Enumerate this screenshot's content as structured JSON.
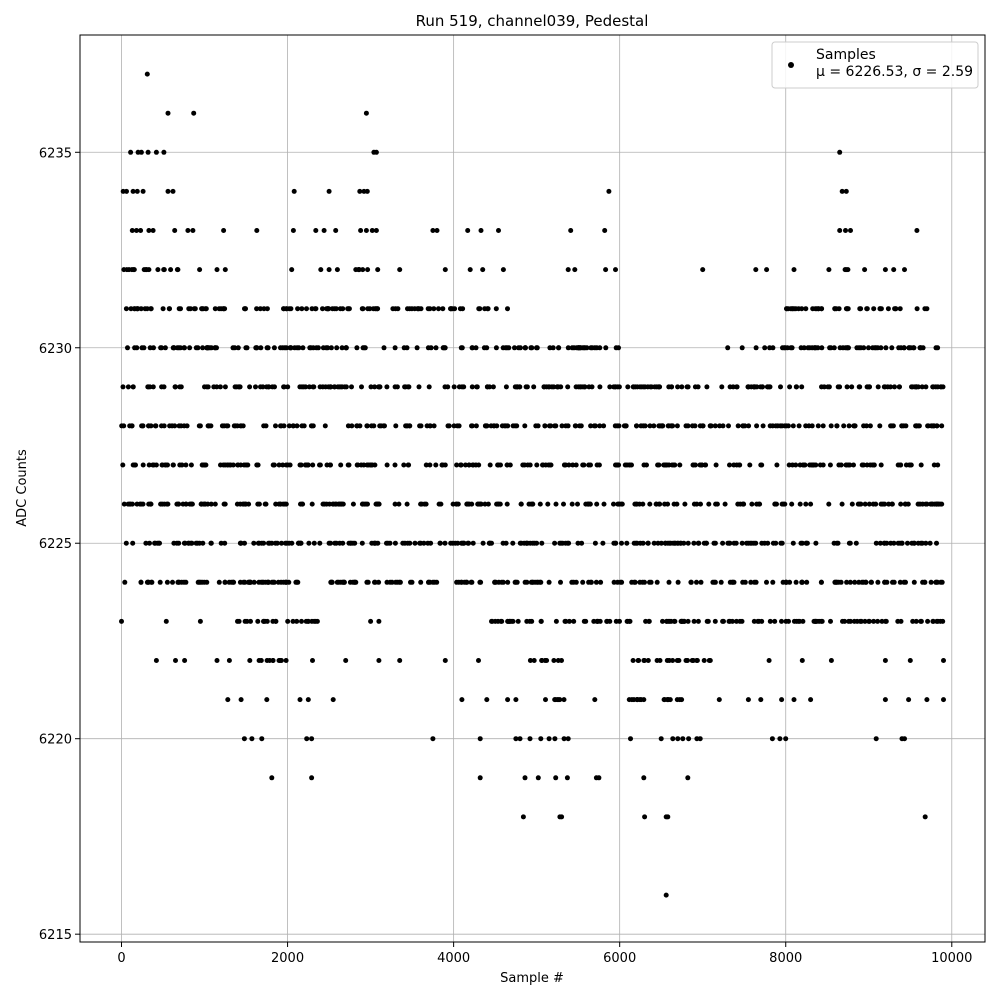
{
  "chart_data": {
    "type": "scatter",
    "title": "Run 519, channel039, Pedestal",
    "xlabel": "Sample #",
    "ylabel": "ADC Counts",
    "xlim": [
      -500,
      10400
    ],
    "ylim": [
      6214.8,
      6238.0
    ],
    "xticks": [
      0,
      2000,
      4000,
      6000,
      8000,
      10000
    ],
    "yticks": [
      6215,
      6220,
      6225,
      6230,
      6235
    ],
    "grid": true,
    "legend_position": "top-right",
    "series": [
      {
        "name": "Samples",
        "legend_line2": "μ = 6226.53, σ = 2.59",
        "color": "#000000",
        "sample_count": 10000,
        "x_range": [
          0,
          9900
        ],
        "y_levels": [
          6216,
          6218,
          6219,
          6220,
          6221,
          6222,
          6223,
          6224,
          6225,
          6226,
          6227,
          6228,
          6229,
          6230,
          6231,
          6232,
          6233,
          6234,
          6235,
          6236,
          6237
        ],
        "dense_bands": [
          {
            "y": 6223,
            "x_ranges": [
              [
                1300,
                2400
              ],
              [
                4300,
                9900
              ]
            ]
          },
          {
            "y": 6224,
            "x_ranges": [
              [
                0,
                9900
              ]
            ]
          },
          {
            "y": 6225,
            "x_ranges": [
              [
                0,
                9900
              ]
            ]
          },
          {
            "y": 6226,
            "x_ranges": [
              [
                0,
                9900
              ]
            ]
          },
          {
            "y": 6227,
            "x_ranges": [
              [
                0,
                9900
              ]
            ]
          },
          {
            "y": 6228,
            "x_ranges": [
              [
                0,
                9900
              ]
            ]
          },
          {
            "y": 6229,
            "x_ranges": [
              [
                0,
                9900
              ]
            ]
          },
          {
            "y": 6230,
            "x_ranges": [
              [
                0,
                6000
              ],
              [
                7300,
                9900
              ]
            ]
          },
          {
            "y": 6231,
            "x_ranges": [
              [
                0,
                4700
              ],
              [
                8000,
                9900
              ]
            ]
          },
          {
            "y": 6232,
            "x_ranges": [
              [
                0,
                700
              ],
              [
                2800,
                3100
              ],
              [
                8650,
                8800
              ]
            ]
          },
          {
            "y": 6222,
            "x_ranges": [
              [
                1500,
                2000
              ],
              [
                4900,
                5300
              ],
              [
                6100,
                7100
              ]
            ]
          },
          {
            "y": 6221,
            "x_ranges": [
              [
                5100,
                5400
              ],
              [
                6100,
                6900
              ]
            ]
          }
        ],
        "outliers": [
          {
            "x": 0,
            "y": 6223
          },
          {
            "x": 540,
            "y": 6223
          },
          {
            "x": 950,
            "y": 6223
          },
          {
            "x": 3000,
            "y": 6223
          },
          {
            "x": 3100,
            "y": 6223
          },
          {
            "x": 420,
            "y": 6222
          },
          {
            "x": 650,
            "y": 6222
          },
          {
            "x": 760,
            "y": 6222
          },
          {
            "x": 1150,
            "y": 6222
          },
          {
            "x": 1300,
            "y": 6222
          },
          {
            "x": 2300,
            "y": 6222
          },
          {
            "x": 2700,
            "y": 6222
          },
          {
            "x": 3100,
            "y": 6222
          },
          {
            "x": 3350,
            "y": 6222
          },
          {
            "x": 3900,
            "y": 6222
          },
          {
            "x": 4300,
            "y": 6222
          },
          {
            "x": 7800,
            "y": 6222
          },
          {
            "x": 8200,
            "y": 6222
          },
          {
            "x": 8550,
            "y": 6222
          },
          {
            "x": 9200,
            "y": 6222
          },
          {
            "x": 9500,
            "y": 6222
          },
          {
            "x": 9900,
            "y": 6222
          },
          {
            "x": 1280,
            "y": 6221
          },
          {
            "x": 1440,
            "y": 6221
          },
          {
            "x": 1750,
            "y": 6221
          },
          {
            "x": 2150,
            "y": 6221
          },
          {
            "x": 2250,
            "y": 6221
          },
          {
            "x": 2550,
            "y": 6221
          },
          {
            "x": 4100,
            "y": 6221
          },
          {
            "x": 4400,
            "y": 6221
          },
          {
            "x": 4650,
            "y": 6221
          },
          {
            "x": 4750,
            "y": 6221
          },
          {
            "x": 5700,
            "y": 6221
          },
          {
            "x": 7200,
            "y": 6221
          },
          {
            "x": 7550,
            "y": 6221
          },
          {
            "x": 7700,
            "y": 6221
          },
          {
            "x": 7950,
            "y": 6221
          },
          {
            "x": 8100,
            "y": 6221
          },
          {
            "x": 8300,
            "y": 6221
          },
          {
            "x": 9200,
            "y": 6221
          },
          {
            "x": 9480,
            "y": 6221
          },
          {
            "x": 9700,
            "y": 6221
          },
          {
            "x": 9900,
            "y": 6221
          },
          {
            "x": 1480,
            "y": 6220
          },
          {
            "x": 1570,
            "y": 6220
          },
          {
            "x": 1690,
            "y": 6220
          },
          {
            "x": 2230,
            "y": 6220
          },
          {
            "x": 2290,
            "y": 6220
          },
          {
            "x": 3750,
            "y": 6220
          },
          {
            "x": 4320,
            "y": 6220
          },
          {
            "x": 4750,
            "y": 6220
          },
          {
            "x": 4800,
            "y": 6220
          },
          {
            "x": 4920,
            "y": 6220
          },
          {
            "x": 5050,
            "y": 6220
          },
          {
            "x": 5150,
            "y": 6220
          },
          {
            "x": 5220,
            "y": 6220
          },
          {
            "x": 5330,
            "y": 6220
          },
          {
            "x": 5380,
            "y": 6220
          },
          {
            "x": 6130,
            "y": 6220
          },
          {
            "x": 6500,
            "y": 6220
          },
          {
            "x": 6640,
            "y": 6220
          },
          {
            "x": 6700,
            "y": 6220
          },
          {
            "x": 6760,
            "y": 6220
          },
          {
            "x": 6830,
            "y": 6220
          },
          {
            "x": 6930,
            "y": 6220
          },
          {
            "x": 6970,
            "y": 6220
          },
          {
            "x": 7840,
            "y": 6220
          },
          {
            "x": 7930,
            "y": 6220
          },
          {
            "x": 8000,
            "y": 6220
          },
          {
            "x": 9090,
            "y": 6220
          },
          {
            "x": 9400,
            "y": 6220
          },
          {
            "x": 9430,
            "y": 6220
          },
          {
            "x": 1810,
            "y": 6219
          },
          {
            "x": 2290,
            "y": 6219
          },
          {
            "x": 4320,
            "y": 6219
          },
          {
            "x": 4860,
            "y": 6219
          },
          {
            "x": 5020,
            "y": 6219
          },
          {
            "x": 5230,
            "y": 6219
          },
          {
            "x": 5370,
            "y": 6219
          },
          {
            "x": 5720,
            "y": 6219
          },
          {
            "x": 5750,
            "y": 6219
          },
          {
            "x": 6290,
            "y": 6219
          },
          {
            "x": 6820,
            "y": 6219
          },
          {
            "x": 4840,
            "y": 6218
          },
          {
            "x": 5280,
            "y": 6218
          },
          {
            "x": 5300,
            "y": 6218
          },
          {
            "x": 6300,
            "y": 6218
          },
          {
            "x": 6560,
            "y": 6218
          },
          {
            "x": 6580,
            "y": 6218
          },
          {
            "x": 9680,
            "y": 6218
          },
          {
            "x": 6560,
            "y": 6216
          },
          {
            "x": 940,
            "y": 6232
          },
          {
            "x": 1150,
            "y": 6232
          },
          {
            "x": 1250,
            "y": 6232
          },
          {
            "x": 2050,
            "y": 6232
          },
          {
            "x": 2400,
            "y": 6232
          },
          {
            "x": 2500,
            "y": 6232
          },
          {
            "x": 2600,
            "y": 6232
          },
          {
            "x": 3350,
            "y": 6232
          },
          {
            "x": 3900,
            "y": 6232
          },
          {
            "x": 4200,
            "y": 6232
          },
          {
            "x": 4350,
            "y": 6232
          },
          {
            "x": 4600,
            "y": 6232
          },
          {
            "x": 5380,
            "y": 6232
          },
          {
            "x": 5460,
            "y": 6232
          },
          {
            "x": 5830,
            "y": 6232
          },
          {
            "x": 5950,
            "y": 6232
          },
          {
            "x": 7000,
            "y": 6232
          },
          {
            "x": 7640,
            "y": 6232
          },
          {
            "x": 7770,
            "y": 6232
          },
          {
            "x": 8100,
            "y": 6232
          },
          {
            "x": 8520,
            "y": 6232
          },
          {
            "x": 8950,
            "y": 6232
          },
          {
            "x": 9200,
            "y": 6232
          },
          {
            "x": 9300,
            "y": 6232
          },
          {
            "x": 9430,
            "y": 6232
          },
          {
            "x": 130,
            "y": 6233
          },
          {
            "x": 180,
            "y": 6233
          },
          {
            "x": 230,
            "y": 6233
          },
          {
            "x": 330,
            "y": 6233
          },
          {
            "x": 380,
            "y": 6233
          },
          {
            "x": 640,
            "y": 6233
          },
          {
            "x": 800,
            "y": 6233
          },
          {
            "x": 860,
            "y": 6233
          },
          {
            "x": 1230,
            "y": 6233
          },
          {
            "x": 1630,
            "y": 6233
          },
          {
            "x": 2070,
            "y": 6233
          },
          {
            "x": 2340,
            "y": 6233
          },
          {
            "x": 2440,
            "y": 6233
          },
          {
            "x": 2580,
            "y": 6233
          },
          {
            "x": 2880,
            "y": 6233
          },
          {
            "x": 2950,
            "y": 6233
          },
          {
            "x": 3020,
            "y": 6233
          },
          {
            "x": 3070,
            "y": 6233
          },
          {
            "x": 3750,
            "y": 6233
          },
          {
            "x": 3800,
            "y": 6233
          },
          {
            "x": 4170,
            "y": 6233
          },
          {
            "x": 4330,
            "y": 6233
          },
          {
            "x": 4540,
            "y": 6233
          },
          {
            "x": 5410,
            "y": 6233
          },
          {
            "x": 5820,
            "y": 6233
          },
          {
            "x": 8650,
            "y": 6233
          },
          {
            "x": 8720,
            "y": 6233
          },
          {
            "x": 8780,
            "y": 6233
          },
          {
            "x": 9580,
            "y": 6233
          },
          {
            "x": 20,
            "y": 6234
          },
          {
            "x": 60,
            "y": 6234
          },
          {
            "x": 140,
            "y": 6234
          },
          {
            "x": 190,
            "y": 6234
          },
          {
            "x": 260,
            "y": 6234
          },
          {
            "x": 560,
            "y": 6234
          },
          {
            "x": 620,
            "y": 6234
          },
          {
            "x": 2080,
            "y": 6234
          },
          {
            "x": 2500,
            "y": 6234
          },
          {
            "x": 2870,
            "y": 6234
          },
          {
            "x": 2920,
            "y": 6234
          },
          {
            "x": 2960,
            "y": 6234
          },
          {
            "x": 5870,
            "y": 6234
          },
          {
            "x": 8680,
            "y": 6234
          },
          {
            "x": 8730,
            "y": 6234
          },
          {
            "x": 110,
            "y": 6235
          },
          {
            "x": 200,
            "y": 6235
          },
          {
            "x": 240,
            "y": 6235
          },
          {
            "x": 320,
            "y": 6235
          },
          {
            "x": 420,
            "y": 6235
          },
          {
            "x": 510,
            "y": 6235
          },
          {
            "x": 3040,
            "y": 6235
          },
          {
            "x": 3070,
            "y": 6235
          },
          {
            "x": 8650,
            "y": 6235
          },
          {
            "x": 560,
            "y": 6236
          },
          {
            "x": 870,
            "y": 6236
          },
          {
            "x": 2950,
            "y": 6236
          },
          {
            "x": 310,
            "y": 6237
          }
        ]
      }
    ]
  }
}
